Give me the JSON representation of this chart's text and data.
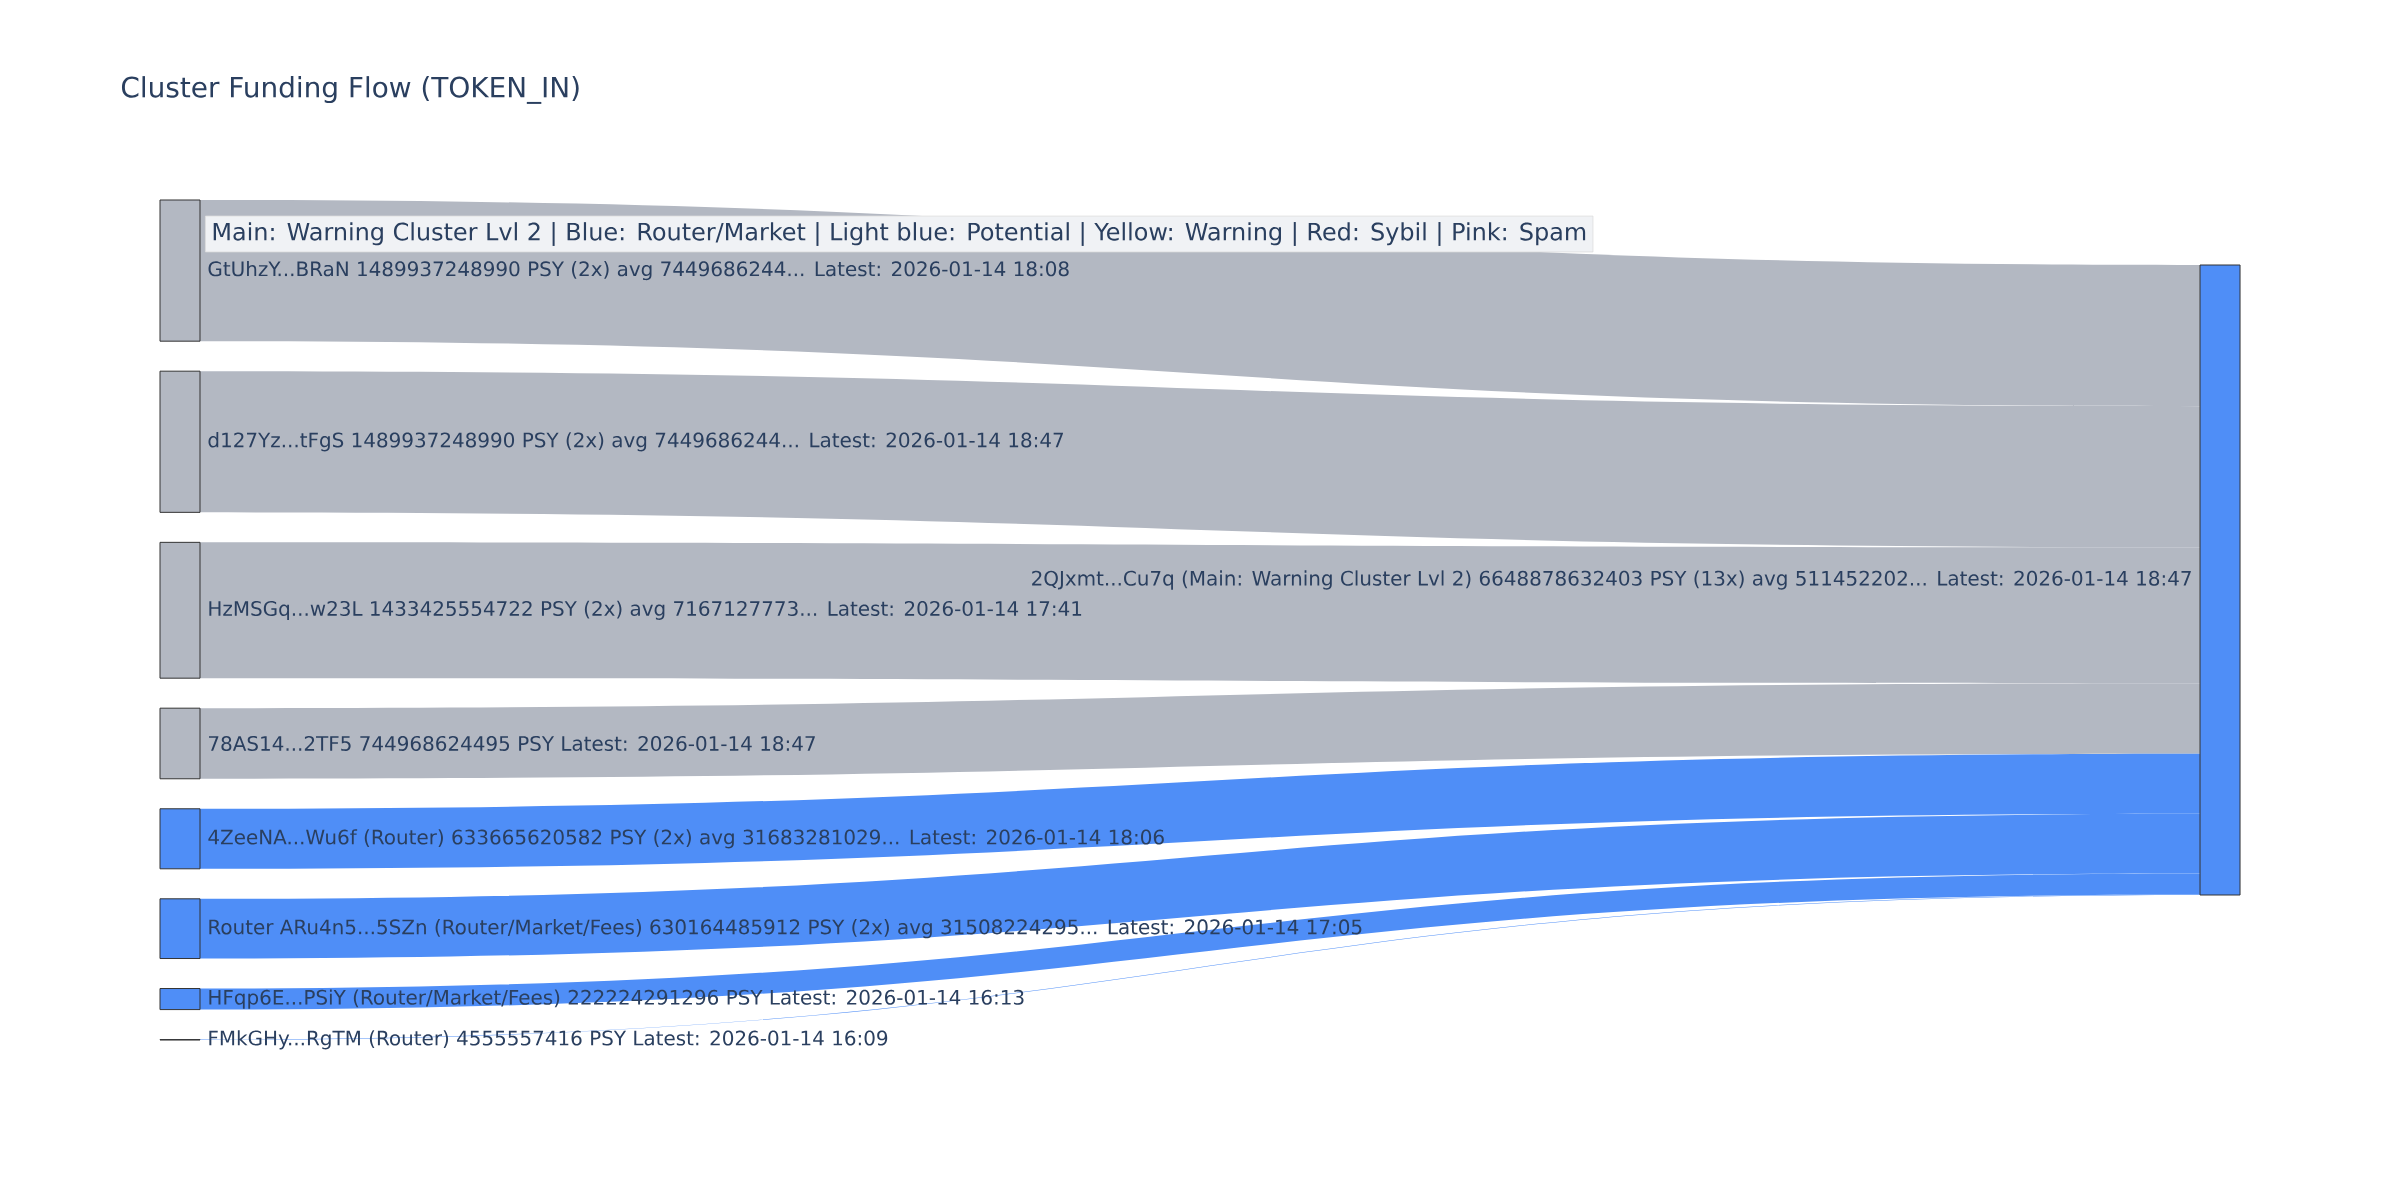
{
  "chart_data": {
    "type": "other",
    "title": "Cluster Funding Flow (TOKEN_IN)",
    "annotations": [
      "Main: Warning Cluster Lvl 2  |  Blue: Router/Market | Light blue: Potential | Yellow: Warning | Red: Sybil | Pink: Spam",
      "PSY (2x) avg 7449686244... Latest: 2026-01-14 18:08",
      "PSY (2x) avg 7449686244... Latest: 2026-01-14 18:47",
      "PSY (2x) avg 7167127773... Latest: 2026-01-14 17:41",
      "PSY Latest: 2026-01-14 18:47",
      "PSY (2x) avg 31683281029... Latest: 2026-01-14 18:06",
      "PSY (2x) avg 31508224295... Latest: 2026-01-14 17:05",
      "PSY Latest: 2026-01-14 16:13",
      "PSY Latest: 2026-01-14 16:09",
      "PSY (13x) avg 511452202... Latest: 2026-01-14 18:47"
    ],
    "categories": [
      "GtUhzY...BRaN",
      "d127Yz...tFgS",
      "HzMSGq...w23L",
      "78AS14...2TF5",
      "4ZeeNA...Wu6f (Router)",
      "Router ARu4n5...5SZn (Router/Market/Fees)",
      "HFqp6E...PSiY (Router/Market/Fees)",
      "FMkGHy...RgTM (Router)",
      "2QJxmt...Cu7q (Main: Warning Cluster Lvl 2)"
    ],
    "values": [
      1489937248990,
      1489937248990,
      1433425554722,
      744968624495,
      633665620582,
      630164485912,
      222224291296,
      4555557416,
      6648878632403
    ],
    "data_labels": true,
    "colors": [
      "#b3b8c2",
      "#b3b8c2",
      "#b3b8c2",
      "#b3b8c2",
      "#4f8ef7",
      "#4f8ef7",
      "#4f8ef7",
      "#4f8ef7",
      "#4f8ef7"
    ]
  }
}
